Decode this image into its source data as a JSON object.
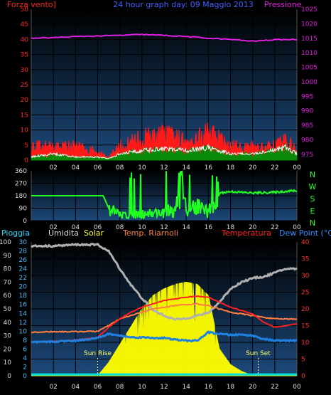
{
  "header": {
    "left_label": "Forza vento]",
    "title": "24 hour graph day:  09 Maggio 2013",
    "right_label": "Pressione"
  },
  "wind_dir_letters": [
    "N",
    "W",
    "S",
    "E",
    "N"
  ],
  "bottom_legend": {
    "rain": "Pioggia",
    "humidity": "Umidita",
    "solar": "Solar",
    "dew_temp": "Temp. Riarnoli",
    "temperature": "Temperatura",
    "dewpoint": "Dew Point (°C)"
  },
  "sun_events": {
    "sunrise_label": "Sun Rise",
    "sunset_label": "Sun Set",
    "sunrise_hour": 6,
    "sunset_hour": 20.5
  },
  "colors": {
    "background": "#000000",
    "plot_top": "#000000",
    "plot_bottom": "#1d4a7c",
    "grid": "#0b0b0b",
    "wind_gust": "#ff1a1a",
    "wind_avg": "#0a8a0a",
    "wind_white": "#ffffff",
    "pressure": "#e01ee0",
    "wind_dir": "#20ff20",
    "temperature": "#ff2020",
    "dew_temp": "#ff8040",
    "humidity": "#b0b0b0",
    "solar": "#ffff00",
    "dewpoint": "#2080e0",
    "rain": "#00e0e0"
  },
  "chart_data": [
    {
      "type": "line",
      "name": "wind-pressure",
      "title": "24 hour graph day:  09 Maggio 2013",
      "x_ticks": [
        "02",
        "04",
        "06",
        "08",
        "10",
        "12",
        "14",
        "16",
        "18",
        "20",
        "22",
        "00"
      ],
      "y_left_label": "Forza vento]",
      "y_left_ticks": [
        0,
        5,
        10,
        15,
        20,
        25,
        30,
        35,
        40,
        45,
        50
      ],
      "y_left_range": [
        0,
        50
      ],
      "y_right_label": "Pressione",
      "y_right_ticks": [
        975,
        980,
        985,
        990,
        995,
        1000,
        1005,
        1010,
        1015,
        1020,
        1025
      ],
      "y_right_range": [
        973,
        1025
      ],
      "series": [
        {
          "name": "Pressione",
          "x": [
            0,
            2,
            4,
            6,
            8,
            10,
            12,
            14,
            16,
            18,
            20,
            22,
            24
          ],
          "values": [
            1015,
            1015.2,
            1015.6,
            1015.8,
            1016,
            1016.3,
            1016,
            1015.6,
            1015,
            1014.6,
            1014,
            1014.5,
            1014.6
          ]
        },
        {
          "name": "gust",
          "x": [
            0,
            2,
            4,
            6,
            7,
            8,
            10,
            12,
            14,
            16,
            18,
            20,
            22,
            23,
            24
          ],
          "values": [
            5,
            5,
            5,
            3,
            1,
            5,
            8,
            9,
            7,
            10,
            5,
            5,
            5,
            7,
            4
          ]
        },
        {
          "name": "average",
          "x": [
            0,
            2,
            4,
            6,
            7,
            8,
            10,
            12,
            14,
            16,
            18,
            20,
            22,
            23,
            24
          ],
          "values": [
            1,
            2,
            1,
            1,
            0.5,
            2,
            3,
            3.5,
            3,
            4,
            2,
            2,
            3,
            4,
            2
          ]
        }
      ]
    },
    {
      "type": "line",
      "name": "wind-direction",
      "x_ticks": [
        "02",
        "04",
        "06",
        "08",
        "10",
        "12",
        "14",
        "16",
        "18",
        "20",
        "22",
        "00"
      ],
      "y_ticks": [
        0,
        90,
        180,
        270,
        360
      ],
      "y_range": [
        0,
        360
      ],
      "series": [
        {
          "name": "direction",
          "x": [
            0,
            6.5,
            7,
            8,
            10,
            12,
            13,
            13.5,
            14,
            15,
            16,
            17,
            18,
            20,
            22,
            23.5
          ],
          "values": [
            180,
            180,
            90,
            40,
            50,
            60,
            80,
            300,
            60,
            100,
            60,
            200,
            210,
            200,
            205,
            215
          ]
        }
      ]
    },
    {
      "type": "line",
      "name": "temperature-humidity-solar",
      "x_ticks": [
        "02",
        "04",
        "06",
        "08",
        "10",
        "12",
        "14",
        "16",
        "18",
        "20",
        "22",
        "00"
      ],
      "y_left1_ticks": [
        0,
        10,
        20,
        30,
        40,
        50,
        60,
        70,
        80,
        90,
        100
      ],
      "y_left1_range": [
        0,
        100
      ],
      "y_left2_ticks": [
        0,
        2,
        4,
        6,
        8,
        10,
        12,
        14,
        16,
        18,
        20,
        22,
        24,
        26,
        28,
        30
      ],
      "y_left2_range": [
        0,
        30
      ],
      "y_right_ticks": [
        0,
        5,
        10,
        15,
        20,
        25,
        30,
        35,
        40
      ],
      "y_right_range": [
        0,
        40
      ],
      "series": [
        {
          "name": "Umidita",
          "x": [
            0,
            2,
            4,
            6,
            7,
            8,
            9,
            10,
            11,
            12,
            13,
            14,
            15,
            16,
            17,
            18,
            19,
            20,
            21,
            22,
            23,
            24
          ],
          "values": [
            97,
            97,
            98,
            98,
            93,
            80,
            68,
            58,
            49,
            45,
            42,
            43,
            45,
            47,
            55,
            65,
            70,
            73,
            74,
            77,
            80,
            80
          ]
        },
        {
          "name": "Temperatura",
          "x": [
            0,
            2,
            4,
            6,
            7,
            8,
            9,
            10,
            11,
            12,
            13,
            14,
            15,
            16,
            17,
            18,
            19,
            20,
            21,
            22,
            23,
            24
          ],
          "values": [
            10,
            10.3,
            10.6,
            11.5,
            14.5,
            17,
            19,
            20.5,
            21.5,
            22.5,
            23,
            23.5,
            23.8,
            23.5,
            22,
            20.5,
            19.5,
            18.5,
            16,
            14.5,
            15,
            15.5
          ]
        },
        {
          "name": "Temp. Riarnoli",
          "x": [
            0,
            2,
            4,
            6,
            7,
            8,
            9,
            10,
            11,
            12,
            13,
            14,
            15,
            16,
            17,
            18,
            19,
            20,
            21,
            22,
            23,
            24
          ],
          "values": [
            13,
            13.2,
            13.2,
            13.3,
            15,
            17,
            18,
            19,
            20,
            20.5,
            21,
            21.3,
            21.5,
            21,
            20,
            19,
            18.5,
            18,
            17.5,
            17,
            17,
            17
          ]
        },
        {
          "name": "Dew Point (°C)",
          "x": [
            0,
            2,
            4,
            6,
            7,
            8,
            9,
            10,
            11,
            12,
            13,
            14,
            15,
            16,
            17,
            18,
            19,
            20,
            21,
            22,
            23,
            24
          ],
          "values": [
            10,
            10.2,
            10.5,
            11.3,
            12.5,
            12,
            11.5,
            11.5,
            11.3,
            11.3,
            10.8,
            10.5,
            10.5,
            13,
            12.5,
            12.2,
            12.3,
            12,
            11,
            10.5,
            10.5,
            10.5
          ]
        },
        {
          "name": "Solar",
          "x": [
            0,
            6,
            7,
            8,
            9,
            10,
            11,
            12,
            13,
            14,
            15,
            16,
            17,
            18,
            19,
            20,
            24
          ],
          "values": [
            0,
            0,
            3,
            7,
            11,
            15,
            18,
            19.5,
            20.5,
            21,
            20.5,
            18,
            6,
            2.5,
            1,
            0,
            0
          ]
        },
        {
          "name": "Pioggia",
          "x": [
            0,
            24
          ],
          "values": [
            0.3,
            0.3
          ]
        }
      ]
    }
  ]
}
